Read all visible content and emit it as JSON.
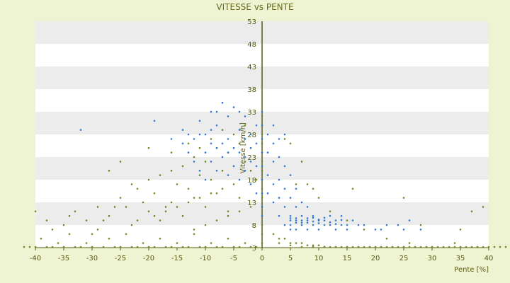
{
  "chart_data": {
    "type": "scatter",
    "title": "VITESSE vs PENTE",
    "xlabel": "Pente [%]",
    "ylabel": "Vitesse [km/h]",
    "xlim": [
      -40,
      40
    ],
    "ylim": [
      3,
      53
    ],
    "x_ticks": [
      -40,
      -35,
      -30,
      -25,
      -20,
      -15,
      -10,
      -5,
      0,
      5,
      10,
      15,
      20,
      25,
      30,
      35,
      40
    ],
    "y_ticks": [
      3,
      8,
      13,
      18,
      23,
      28,
      33,
      38,
      43,
      48,
      53
    ],
    "grid": "horizontal bands",
    "legend": "none",
    "colors": {
      "background": "#eef4d2",
      "plot_band_light": "#ffffff",
      "plot_band_dark": "#ececec",
      "axis": "#5a5a14",
      "title": "#6b6b1e",
      "series_a": "#6b8e23",
      "series_b": "#2f7bd6"
    },
    "series": [
      {
        "color": "#6b8e23",
        "points": [
          [
            -42,
            2
          ],
          [
            -41,
            3
          ],
          [
            -40,
            2
          ],
          [
            -39,
            5
          ],
          [
            -38,
            3
          ],
          [
            -37,
            2
          ],
          [
            -36,
            4
          ],
          [
            -35,
            2
          ],
          [
            -34,
            6
          ],
          [
            -33,
            3
          ],
          [
            -32,
            2
          ],
          [
            -31,
            4
          ],
          [
            -30,
            3
          ],
          [
            -29,
            7
          ],
          [
            -28,
            2
          ],
          [
            -27,
            5
          ],
          [
            -26,
            3
          ],
          [
            -25,
            2
          ],
          [
            -24,
            6
          ],
          [
            -23,
            3
          ],
          [
            -22,
            2
          ],
          [
            -21,
            4
          ],
          [
            -20,
            3
          ],
          [
            -19,
            2
          ],
          [
            -18,
            5
          ],
          [
            -17,
            3
          ],
          [
            -16,
            2
          ],
          [
            -15,
            4
          ],
          [
            -14,
            3
          ],
          [
            -13,
            2
          ],
          [
            -12,
            6
          ],
          [
            -11,
            3
          ],
          [
            -10,
            2
          ],
          [
            -9,
            4
          ],
          [
            -8,
            3
          ],
          [
            -7,
            2
          ],
          [
            -6,
            5
          ],
          [
            -5,
            3
          ],
          [
            -4,
            2
          ],
          [
            -3,
            4
          ],
          [
            -2,
            3
          ],
          [
            -1,
            2
          ],
          [
            -38,
            9
          ],
          [
            -35,
            8
          ],
          [
            -33,
            11
          ],
          [
            -31,
            9
          ],
          [
            -29,
            12
          ],
          [
            -27,
            10
          ],
          [
            -25,
            14
          ],
          [
            -24,
            12
          ],
          [
            -22,
            16
          ],
          [
            -21,
            13
          ],
          [
            -20,
            18
          ],
          [
            -19,
            15
          ],
          [
            -18,
            19
          ],
          [
            -17,
            12
          ],
          [
            -16,
            20
          ],
          [
            -15,
            17
          ],
          [
            -14,
            21
          ],
          [
            -13,
            16
          ],
          [
            -12,
            23
          ],
          [
            -11,
            19
          ],
          [
            -10,
            22
          ],
          [
            -9,
            18
          ],
          [
            -8,
            25
          ],
          [
            -7,
            20
          ],
          [
            -6,
            24
          ],
          [
            -5,
            21
          ],
          [
            -4,
            26
          ],
          [
            -3,
            22
          ],
          [
            -2,
            20
          ],
          [
            -1,
            18
          ],
          [
            -40,
            11
          ],
          [
            -37,
            7
          ],
          [
            -34,
            10
          ],
          [
            -30,
            6
          ],
          [
            -28,
            9
          ],
          [
            -26,
            12
          ],
          [
            -23,
            8
          ],
          [
            -20,
            11
          ],
          [
            -18,
            9
          ],
          [
            -16,
            13
          ],
          [
            -14,
            10
          ],
          [
            -12,
            14
          ],
          [
            -10,
            12
          ],
          [
            -8,
            15
          ],
          [
            -6,
            11
          ],
          [
            -4,
            14
          ],
          [
            -2,
            12
          ],
          [
            -27,
            20
          ],
          [
            -25,
            22
          ],
          [
            -23,
            17
          ],
          [
            -20,
            25
          ],
          [
            -16,
            24
          ],
          [
            -13,
            26
          ],
          [
            -11,
            25
          ],
          [
            -9,
            27
          ],
          [
            -7,
            29
          ],
          [
            -5,
            28
          ],
          [
            -3,
            30
          ],
          [
            -22,
            9
          ],
          [
            -19,
            10
          ],
          [
            -17,
            11
          ],
          [
            -15,
            12
          ],
          [
            -13,
            13
          ],
          [
            -11,
            14
          ],
          [
            -9,
            15
          ],
          [
            -7,
            16
          ],
          [
            -5,
            17
          ],
          [
            -12,
            7
          ],
          [
            -10,
            8
          ],
          [
            -8,
            9
          ],
          [
            -6,
            10
          ],
          [
            -4,
            11
          ],
          [
            0,
            4
          ],
          [
            0,
            6
          ],
          [
            0,
            8
          ],
          [
            0,
            10
          ],
          [
            0,
            12
          ],
          [
            0,
            14
          ],
          [
            0,
            16
          ],
          [
            0,
            18
          ],
          [
            0,
            20
          ],
          [
            0,
            22
          ],
          [
            0,
            24
          ],
          [
            0,
            26
          ],
          [
            0,
            28
          ],
          [
            0,
            30
          ],
          [
            0,
            32
          ],
          [
            2,
            6
          ],
          [
            3,
            5
          ],
          [
            4,
            5
          ],
          [
            5,
            4
          ],
          [
            6,
            4
          ],
          [
            7,
            4
          ],
          [
            8,
            3.5
          ],
          [
            9,
            3.5
          ],
          [
            10,
            3.5
          ],
          [
            11,
            3.2
          ],
          [
            12,
            3
          ],
          [
            13,
            3
          ],
          [
            14,
            2.9
          ],
          [
            15,
            2.8
          ],
          [
            16,
            2.7
          ],
          [
            17,
            2.6
          ],
          [
            18,
            2.5
          ],
          [
            19,
            2.5
          ],
          [
            20,
            2.4
          ],
          [
            21,
            2.4
          ],
          [
            22,
            2.3
          ],
          [
            23,
            2.3
          ],
          [
            24,
            2.2
          ],
          [
            25,
            2.2
          ],
          [
            26,
            2.1
          ],
          [
            27,
            2.1
          ],
          [
            28,
            2
          ],
          [
            29,
            2
          ],
          [
            30,
            2
          ],
          [
            31,
            1.9
          ],
          [
            32,
            1.9
          ],
          [
            33,
            1.8
          ],
          [
            34,
            1.8
          ],
          [
            35,
            1.8
          ],
          [
            36,
            1.7
          ],
          [
            37,
            1.7
          ],
          [
            38,
            1.7
          ],
          [
            39,
            1.6
          ],
          [
            40,
            1.6
          ],
          [
            41,
            1.6
          ],
          [
            42,
            1.5
          ],
          [
            43,
            1.5
          ],
          [
            3,
            4
          ],
          [
            5,
            3.5
          ],
          [
            7,
            3
          ],
          [
            9,
            3.2
          ],
          [
            11,
            2.8
          ],
          [
            13,
            2.6
          ],
          [
            15,
            2.5
          ],
          [
            17,
            2.4
          ],
          [
            19,
            2.3
          ],
          [
            21,
            2.2
          ],
          [
            23,
            2.1
          ],
          [
            25,
            2
          ],
          [
            27,
            2
          ],
          [
            29,
            1.9
          ],
          [
            4,
            27
          ],
          [
            5,
            26
          ],
          [
            6,
            17
          ],
          [
            7,
            22
          ],
          [
            8,
            17
          ],
          [
            9,
            16
          ],
          [
            10,
            14
          ],
          [
            12,
            11
          ],
          [
            15,
            9
          ],
          [
            18,
            7
          ],
          [
            22,
            5
          ],
          [
            26,
            4
          ],
          [
            30,
            3
          ],
          [
            34,
            4
          ],
          [
            38,
            3
          ],
          [
            37,
            11
          ],
          [
            39,
            12
          ],
          [
            35,
            7
          ],
          [
            16,
            16
          ],
          [
            28,
            8
          ],
          [
            25,
            14
          ]
        ]
      },
      {
        "color": "#2f7bd6",
        "points": [
          [
            -32,
            29
          ],
          [
            -19,
            31
          ],
          [
            -16,
            27
          ],
          [
            -14,
            29
          ],
          [
            -12,
            27
          ],
          [
            -11,
            31
          ],
          [
            -10,
            24
          ],
          [
            -9,
            33
          ],
          [
            -8,
            30
          ],
          [
            -7,
            35
          ],
          [
            -6,
            27
          ],
          [
            -5,
            34
          ],
          [
            -4,
            29
          ],
          [
            -3,
            32
          ],
          [
            -2,
            25
          ],
          [
            -1,
            30
          ],
          [
            -13,
            24
          ],
          [
            -12,
            22
          ],
          [
            -11,
            20
          ],
          [
            -10,
            18
          ],
          [
            -9,
            22
          ],
          [
            -8,
            20
          ],
          [
            -7,
            23
          ],
          [
            -6,
            19
          ],
          [
            -5,
            21
          ],
          [
            -4,
            18
          ],
          [
            -3,
            20
          ],
          [
            -2,
            17
          ],
          [
            -1,
            15
          ],
          [
            -9,
            26
          ],
          [
            -8,
            25
          ],
          [
            -7,
            26
          ],
          [
            -6,
            24
          ],
          [
            -5,
            25
          ],
          [
            -4,
            24
          ],
          [
            -3,
            23
          ],
          [
            -2,
            22
          ],
          [
            -1,
            21
          ],
          [
            -14,
            26
          ],
          [
            -13,
            28
          ],
          [
            -11,
            28
          ],
          [
            -10,
            28
          ],
          [
            -9,
            29
          ],
          [
            -8,
            33
          ],
          [
            -6,
            32
          ],
          [
            -4,
            33
          ],
          [
            -3,
            27
          ],
          [
            -2,
            28
          ],
          [
            -1,
            26
          ],
          [
            0,
            33
          ],
          [
            0,
            30
          ],
          [
            0,
            27
          ],
          [
            0,
            24
          ],
          [
            0,
            21
          ],
          [
            0,
            18
          ],
          [
            0,
            15
          ],
          [
            0,
            12
          ],
          [
            0,
            10
          ],
          [
            1,
            24
          ],
          [
            1,
            19
          ],
          [
            1,
            15
          ],
          [
            2,
            22
          ],
          [
            2,
            17
          ],
          [
            2,
            13
          ],
          [
            3,
            23
          ],
          [
            3,
            18
          ],
          [
            3,
            14
          ],
          [
            3,
            10
          ],
          [
            4,
            21
          ],
          [
            4,
            16
          ],
          [
            4,
            12
          ],
          [
            4,
            8
          ],
          [
            5,
            19
          ],
          [
            5,
            14
          ],
          [
            5,
            10
          ],
          [
            5,
            7
          ],
          [
            6,
            16
          ],
          [
            6,
            12
          ],
          [
            6,
            9
          ],
          [
            6,
            7
          ],
          [
            7,
            13
          ],
          [
            7,
            10
          ],
          [
            7,
            8
          ],
          [
            8,
            12
          ],
          [
            8,
            9
          ],
          [
            8,
            7
          ],
          [
            9,
            10
          ],
          [
            9,
            8
          ],
          [
            10,
            9
          ],
          [
            10,
            7
          ],
          [
            11,
            8
          ],
          [
            11,
            9
          ],
          [
            12,
            10
          ],
          [
            12,
            8
          ],
          [
            13,
            9
          ],
          [
            13,
            7
          ],
          [
            14,
            8
          ],
          [
            14,
            10
          ],
          [
            15,
            8
          ],
          [
            15,
            7
          ],
          [
            16,
            9
          ],
          [
            17,
            8
          ],
          [
            18,
            8
          ],
          [
            20,
            7
          ],
          [
            21,
            7
          ],
          [
            22,
            8
          ],
          [
            24,
            8
          ],
          [
            25,
            7
          ],
          [
            26,
            9
          ],
          [
            28,
            7
          ],
          [
            5,
            9
          ],
          [
            5,
            8
          ],
          [
            5,
            9.5
          ],
          [
            6,
            8.5
          ],
          [
            6,
            9.5
          ],
          [
            7,
            9
          ],
          [
            7,
            8.5
          ],
          [
            8,
            8.5
          ],
          [
            8,
            9.5
          ],
          [
            9,
            8.8
          ],
          [
            9,
            9.6
          ],
          [
            10,
            8.4
          ],
          [
            10,
            9.2
          ],
          [
            11,
            9.6
          ],
          [
            12,
            8.6
          ],
          [
            13,
            8.2
          ],
          [
            14,
            9.1
          ],
          [
            2,
            26
          ],
          [
            3,
            27
          ],
          [
            1,
            28
          ],
          [
            2,
            30
          ],
          [
            4,
            28
          ]
        ]
      }
    ]
  }
}
